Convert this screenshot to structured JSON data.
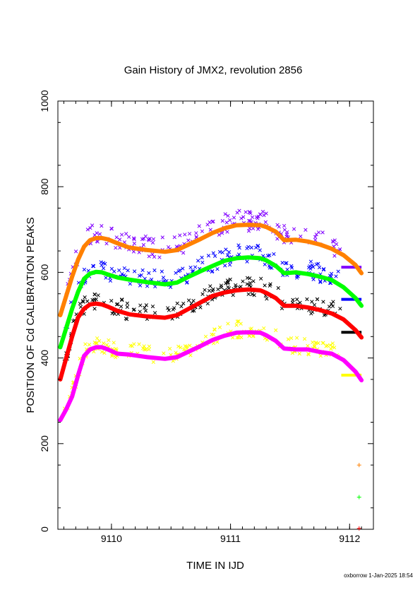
{
  "chart_data": {
    "type": "scatter",
    "title": "Gain History of JMX2, revolution 2856",
    "xlabel": "TIME IN IJD",
    "ylabel": "POSITION OF Cd CALIBRATION PEAKS",
    "xlim": [
      9109.55,
      9112.2
    ],
    "ylim": [
      0,
      1000
    ],
    "x_ticks": [
      "9110",
      "9111",
      "9112"
    ],
    "y_ticks": [
      "0",
      "200",
      "400",
      "600",
      "800",
      "1000"
    ],
    "grid": false,
    "series": [
      {
        "color": "#ff8000",
        "style": "smooth-line",
        "x": [
          9109.57,
          9109.62,
          9109.67,
          9109.72,
          9109.77,
          9109.82,
          9109.87,
          9109.92,
          9109.97,
          9110.05,
          9110.15,
          9110.3,
          9110.45,
          9110.55,
          9110.65,
          9110.75,
          9110.85,
          9110.95,
          9111.05,
          9111.15,
          9111.25,
          9111.3,
          9111.38,
          9111.45,
          9111.55,
          9111.65,
          9111.75,
          9111.85,
          9111.95,
          9112.05,
          9112.1
        ],
        "y": [
          500,
          545,
          590,
          630,
          660,
          675,
          680,
          680,
          677,
          668,
          658,
          652,
          648,
          652,
          665,
          678,
          692,
          703,
          710,
          711,
          710,
          706,
          695,
          675,
          676,
          672,
          665,
          655,
          640,
          617,
          598
        ]
      },
      {
        "color": "#00ff00",
        "style": "smooth-line",
        "x": [
          9109.57,
          9109.62,
          9109.67,
          9109.72,
          9109.77,
          9109.82,
          9109.87,
          9109.92,
          9109.97,
          9110.05,
          9110.15,
          9110.3,
          9110.45,
          9110.55,
          9110.65,
          9110.75,
          9110.85,
          9110.95,
          9111.05,
          9111.15,
          9111.25,
          9111.3,
          9111.38,
          9111.45,
          9111.55,
          9111.65,
          9111.75,
          9111.85,
          9111.95,
          9112.05,
          9112.1
        ],
        "y": [
          425,
          470,
          515,
          555,
          585,
          597,
          601,
          600,
          595,
          588,
          583,
          577,
          572,
          576,
          590,
          603,
          615,
          627,
          633,
          635,
          633,
          628,
          615,
          598,
          600,
          596,
          590,
          582,
          565,
          540,
          522
        ]
      },
      {
        "color": "#ff0000",
        "style": "smooth-line",
        "x": [
          9109.57,
          9109.62,
          9109.67,
          9109.72,
          9109.77,
          9109.82,
          9109.87,
          9109.92,
          9109.97,
          9110.05,
          9110.15,
          9110.3,
          9110.45,
          9110.55,
          9110.65,
          9110.75,
          9110.85,
          9110.95,
          9111.05,
          9111.15,
          9111.25,
          9111.3,
          9111.38,
          9111.45,
          9111.55,
          9111.65,
          9111.75,
          9111.85,
          9111.95,
          9112.05,
          9112.1
        ],
        "y": [
          350,
          400,
          450,
          495,
          515,
          525,
          527,
          525,
          520,
          510,
          502,
          497,
          494,
          500,
          515,
          530,
          545,
          553,
          558,
          560,
          558,
          552,
          540,
          522,
          522,
          518,
          512,
          504,
          490,
          465,
          448
        ]
      },
      {
        "color": "#ff00ff",
        "style": "smooth-line",
        "x": [
          9109.57,
          9109.62,
          9109.67,
          9109.72,
          9109.77,
          9109.82,
          9109.87,
          9109.92,
          9109.97,
          9110.05,
          9110.15,
          9110.3,
          9110.45,
          9110.55,
          9110.65,
          9110.75,
          9110.85,
          9110.95,
          9111.05,
          9111.15,
          9111.25,
          9111.3,
          9111.38,
          9111.45,
          9111.55,
          9111.65,
          9111.75,
          9111.85,
          9111.95,
          9112.05,
          9112.1
        ],
        "y": [
          255,
          280,
          310,
          360,
          405,
          420,
          425,
          425,
          420,
          410,
          408,
          402,
          398,
          402,
          415,
          428,
          442,
          452,
          459,
          460,
          459,
          453,
          440,
          422,
          420,
          420,
          414,
          410,
          395,
          368,
          348
        ]
      }
    ],
    "scatter_series": [
      {
        "color": "#8000ff",
        "centers": [
          500,
          545,
          590,
          630,
          660,
          675,
          680,
          680,
          677,
          668,
          658,
          652,
          648,
          652,
          665,
          678,
          692,
          703,
          710,
          711,
          710,
          706,
          695,
          675,
          676,
          672,
          665,
          655,
          640,
          617,
          598
        ],
        "spread": 22
      },
      {
        "color": "#0000ff",
        "centers": [
          425,
          470,
          515,
          555,
          585,
          597,
          601,
          600,
          595,
          588,
          583,
          577,
          572,
          576,
          590,
          603,
          615,
          627,
          633,
          635,
          633,
          628,
          615,
          598,
          600,
          596,
          590,
          582,
          565,
          540,
          522
        ],
        "spread": 20
      },
      {
        "color": "#000000",
        "centers": [
          350,
          400,
          450,
          495,
          515,
          525,
          527,
          525,
          520,
          510,
          502,
          497,
          494,
          500,
          515,
          530,
          545,
          553,
          558,
          560,
          558,
          552,
          540,
          522,
          522,
          518,
          512,
          504,
          490,
          465,
          448
        ],
        "spread": 20
      },
      {
        "color": "#ffff00",
        "centers": [
          255,
          280,
          310,
          360,
          405,
          420,
          425,
          425,
          420,
          410,
          408,
          402,
          398,
          402,
          415,
          428,
          442,
          452,
          459,
          460,
          459,
          453,
          440,
          422,
          420,
          420,
          414,
          410,
          395,
          368,
          348
        ],
        "spread": 18
      }
    ],
    "flat_segments": [
      {
        "color": "#8000ff",
        "x": [
          9111.93,
          9112.1
        ],
        "y": 612
      },
      {
        "color": "#0000ff",
        "x": [
          9111.93,
          9112.1
        ],
        "y": 537
      },
      {
        "color": "#000000",
        "x": [
          9111.93,
          9112.1
        ],
        "y": 460
      },
      {
        "color": "#ffff00",
        "x": [
          9111.93,
          9112.1
        ],
        "y": 360
      }
    ],
    "isolated_markers": [
      {
        "color": "#ff8000",
        "x": 9112.08,
        "y": 150
      },
      {
        "color": "#00ff00",
        "x": 9112.08,
        "y": 75
      },
      {
        "color": "#ff0000",
        "x": 9112.08,
        "y": 2
      }
    ]
  },
  "footer": "oxborrow  1-Jan-2025 18:54"
}
